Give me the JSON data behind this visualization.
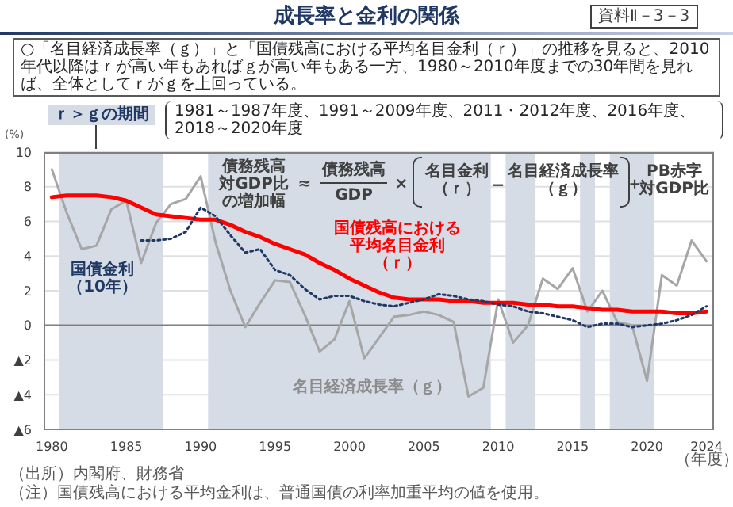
{
  "chart_data": {
    "type": "line",
    "title": "成長率と金利の関係",
    "ylabel": "(%)",
    "xlabel": "（年度）",
    "annotations": [
      "資料Ⅱ－3－3",
      "○「名目経済成長率（ｇ）」と「国債残高における平均名目金利（ｒ）」の推移を見ると、2010年代以降はｒが高い年もあればｇが高い年もある一方、1980～2010年度までの30年間を見れば、全体としてｒがｇを上回っている。",
      "ｒ＞ｇの期間",
      "1981～1987年度、1991～2009年度、2011・2012年度、2016年度、2018～2020年度",
      "債務残高対GDP比の増加幅",
      "≈",
      "債務残高",
      "GDP",
      "×",
      "名目金利（ｒ）",
      "−",
      "名目経済成長率（ｇ）",
      "＋",
      "PB赤字対GDP比",
      "（出所）内閣府、財務省",
      "（注）国債残高における平均金利は、普通国債の利率加重平均の値を使用。"
    ],
    "series": [
      {
        "name": "名目経済成長率（ｇ）",
        "color": "#a6a6a6",
        "x": [
          1980,
          1981,
          1982,
          1983,
          1984,
          1985,
          1986,
          1987,
          1988,
          1989,
          1990,
          1991,
          1992,
          1993,
          1994,
          1995,
          1996,
          1997,
          1998,
          1999,
          2000,
          2001,
          2002,
          2003,
          2004,
          2005,
          2006,
          2007,
          2008,
          2009,
          2010,
          2011,
          2012,
          2013,
          2014,
          2015,
          2016,
          2017,
          2018,
          2019,
          2020,
          2021,
          2022,
          2023,
          2024
        ],
        "values": [
          9.0,
          6.5,
          4.4,
          4.6,
          6.7,
          7.2,
          3.6,
          5.9,
          7.0,
          7.3,
          8.6,
          4.8,
          2.0,
          -0.1,
          1.3,
          2.6,
          2.5,
          0.6,
          -1.5,
          -0.8,
          1.4,
          -1.9,
          -0.7,
          0.5,
          0.6,
          0.8,
          0.6,
          0.2,
          -4.1,
          -3.6,
          1.5,
          -1.0,
          0.0,
          2.7,
          2.1,
          3.3,
          0.8,
          2.0,
          0.2,
          0.0,
          -3.2,
          2.9,
          2.3,
          4.9,
          3.7
        ]
      },
      {
        "name": "国債残高における平均名目金利（ｒ）",
        "color": "#ff0000",
        "x": [
          1980,
          1981,
          1982,
          1983,
          1984,
          1985,
          1986,
          1987,
          1988,
          1989,
          1990,
          1991,
          1992,
          1993,
          1994,
          1995,
          1996,
          1997,
          1998,
          1999,
          2000,
          2001,
          2002,
          2003,
          2004,
          2005,
          2006,
          2007,
          2008,
          2009,
          2010,
          2011,
          2012,
          2013,
          2014,
          2015,
          2016,
          2017,
          2018,
          2019,
          2020,
          2021,
          2022,
          2023,
          2024
        ],
        "values": [
          7.4,
          7.5,
          7.5,
          7.5,
          7.4,
          7.2,
          6.8,
          6.4,
          6.3,
          6.2,
          6.1,
          6.1,
          5.8,
          5.4,
          5.1,
          4.7,
          4.4,
          4.1,
          3.6,
          3.2,
          2.7,
          2.3,
          1.9,
          1.6,
          1.5,
          1.5,
          1.5,
          1.4,
          1.4,
          1.3,
          1.3,
          1.3,
          1.2,
          1.2,
          1.1,
          1.1,
          1.0,
          0.9,
          0.9,
          0.8,
          0.8,
          0.8,
          0.7,
          0.7,
          0.8
        ]
      },
      {
        "name": "国債金利（10年）",
        "color": "#203864",
        "line_style": "dotted",
        "x": [
          1986,
          1987,
          1988,
          1989,
          1990,
          1991,
          1992,
          1993,
          1994,
          1995,
          1996,
          1997,
          1998,
          1999,
          2000,
          2001,
          2002,
          2003,
          2004,
          2005,
          2006,
          2007,
          2008,
          2009,
          2010,
          2011,
          2012,
          2013,
          2014,
          2015,
          2016,
          2017,
          2018,
          2019,
          2020,
          2021,
          2022,
          2023,
          2024
        ],
        "values": [
          4.9,
          4.9,
          5.0,
          5.4,
          6.8,
          6.3,
          5.2,
          4.2,
          4.4,
          3.2,
          2.9,
          2.1,
          1.5,
          1.7,
          1.7,
          1.4,
          1.2,
          1.1,
          1.3,
          1.5,
          1.8,
          1.7,
          1.5,
          1.4,
          1.2,
          1.1,
          0.8,
          0.7,
          0.5,
          0.3,
          -0.1,
          0.1,
          0.1,
          -0.1,
          0.0,
          0.1,
          0.3,
          0.6,
          1.1
        ]
      }
    ],
    "xlim": [
      1979.5,
      2024.5
    ],
    "xticks": [
      1980,
      1985,
      1990,
      1995,
      2000,
      2005,
      2010,
      2015,
      2020,
      2024
    ],
    "ylim": [
      -6,
      10
    ],
    "yticks": [
      {
        "value": -6,
        "label": "▲6"
      },
      {
        "value": -4,
        "label": "▲4"
      },
      {
        "value": -2,
        "label": "▲2"
      },
      0,
      2,
      4,
      6,
      8,
      10
    ],
    "grid": "y",
    "ref_lines": [
      {
        "axis": "y",
        "value": 0,
        "color": "#808080"
      }
    ],
    "bands": [
      {
        "axis": "x",
        "from": 1980.5,
        "to": 1987.5,
        "color": "#d6dce5"
      },
      {
        "axis": "x",
        "from": 1990.5,
        "to": 2009.5,
        "color": "#d6dce5"
      },
      {
        "axis": "x",
        "from": 2010.5,
        "to": 2012.5,
        "color": "#d6dce5"
      },
      {
        "axis": "x",
        "from": 2015.5,
        "to": 2016.5,
        "color": "#d6dce5"
      },
      {
        "axis": "x",
        "from": 2017.5,
        "to": 2020.5,
        "color": "#d6dce5"
      }
    ]
  }
}
